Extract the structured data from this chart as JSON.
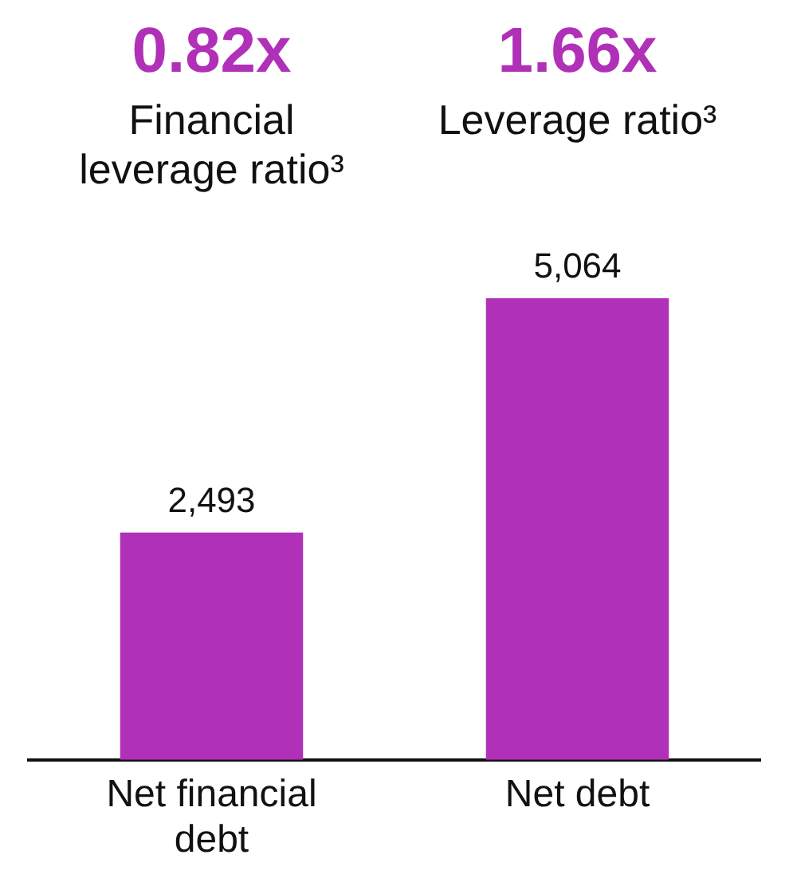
{
  "chart_data": {
    "type": "bar",
    "categories": [
      "Net financial debt",
      "Net debt"
    ],
    "values": [
      2493,
      5064
    ],
    "value_labels": [
      "2,493",
      "5,064"
    ],
    "color": "#b030b8",
    "grid": false,
    "legend": false,
    "annotations": [
      "0.82x",
      "Financial leverage ratio³",
      "1.66x",
      "Leverage ratio³"
    ]
  }
}
